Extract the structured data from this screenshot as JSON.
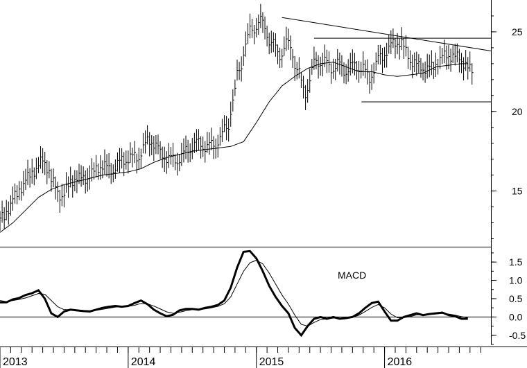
{
  "chart_data": [
    {
      "type": "ohlc",
      "panel": "price",
      "ylim": [
        11.5,
        27
      ],
      "y_ticks": [
        "25",
        "20",
        "15"
      ],
      "y_tick_values": [
        25,
        20,
        15
      ],
      "x_tick_labels": [
        "2013",
        "2014",
        "2015",
        "2016"
      ],
      "x_tick_values": [
        2013.0,
        2014.0,
        2015.0,
        2016.0
      ],
      "xlim": [
        2013.0,
        2016.83
      ],
      "series": [
        {
          "kind": "close",
          "x": [
            2013.0,
            2013.05,
            2013.1,
            2013.15,
            2013.2,
            2013.25,
            2013.3,
            2013.35,
            2013.4,
            2013.45,
            2013.5,
            2013.55,
            2013.6,
            2013.65,
            2013.7,
            2013.75,
            2013.8,
            2013.85,
            2013.9,
            2013.95,
            2014.0,
            2014.05,
            2014.1,
            2014.15,
            2014.2,
            2014.25,
            2014.3,
            2014.35,
            2014.4,
            2014.45,
            2014.5,
            2014.55,
            2014.6,
            2014.65,
            2014.7,
            2014.75,
            2014.8,
            2014.85,
            2014.9,
            2014.95,
            2015.0,
            2015.05,
            2015.1,
            2015.15,
            2015.2,
            2015.25,
            2015.3,
            2015.35,
            2015.4,
            2015.45,
            2015.5,
            2015.55,
            2015.6,
            2015.65,
            2015.7,
            2015.75,
            2015.8,
            2015.85,
            2015.9,
            2015.95,
            2016.0,
            2016.05,
            2016.1,
            2016.15,
            2016.2,
            2016.25,
            2016.3,
            2016.35,
            2016.4,
            2016.45,
            2016.5,
            2016.55,
            2016.6,
            2016.65
          ],
          "y": [
            13.3,
            14.4,
            14.8,
            15.6,
            16.0,
            16.5,
            17.0,
            16.1,
            15.0,
            14.6,
            15.4,
            15.9,
            15.7,
            15.9,
            16.2,
            16.7,
            16.4,
            16.3,
            16.9,
            17.0,
            17.1,
            17.2,
            18.0,
            18.3,
            17.4,
            17.2,
            16.9,
            17.0,
            17.3,
            17.8,
            18.0,
            17.9,
            17.7,
            18.1,
            18.5,
            19.4,
            21.6,
            23.4,
            24.8,
            25.4,
            25.7,
            24.8,
            24.0,
            23.5,
            24.4,
            23.6,
            22.0,
            21.0,
            22.8,
            23.3,
            23.0,
            22.7,
            23.0,
            22.5,
            22.8,
            22.9,
            22.6,
            22.0,
            23.1,
            23.6,
            23.9,
            24.5,
            24.2,
            23.4,
            22.9,
            22.8,
            22.6,
            22.9,
            23.3,
            23.6,
            23.4,
            23.4,
            22.8,
            22.5
          ]
        },
        {
          "kind": "moving-average",
          "x": [
            2013.0,
            2013.1,
            2013.2,
            2013.3,
            2013.4,
            2013.5,
            2013.6,
            2013.7,
            2013.8,
            2013.9,
            2014.0,
            2014.1,
            2014.2,
            2014.3,
            2014.4,
            2014.5,
            2014.6,
            2014.7,
            2014.8,
            2014.9,
            2015.0,
            2015.1,
            2015.2,
            2015.3,
            2015.4,
            2015.5,
            2015.6,
            2015.7,
            2015.8,
            2015.9,
            2016.0,
            2016.1,
            2016.2,
            2016.3,
            2016.4,
            2016.5,
            2016.6,
            2016.65
          ],
          "y": [
            12.4,
            13.0,
            13.8,
            14.6,
            15.1,
            15.4,
            15.6,
            15.8,
            16.0,
            16.1,
            16.2,
            16.4,
            16.8,
            17.1,
            17.3,
            17.5,
            17.6,
            17.7,
            17.8,
            18.1,
            19.3,
            20.6,
            21.6,
            22.2,
            22.7,
            23.0,
            23.1,
            22.8,
            22.5,
            22.5,
            22.3,
            22.2,
            22.3,
            22.4,
            22.8,
            22.9,
            23.0,
            23.0
          ]
        }
      ],
      "lines": [
        {
          "kind": "resistance-trendline",
          "from": [
            2015.2,
            25.9
          ],
          "to": [
            2016.83,
            23.8
          ]
        },
        {
          "kind": "horizontal",
          "from": [
            2015.45,
            24.6
          ],
          "to": [
            2016.83,
            24.6
          ]
        },
        {
          "kind": "horizontal",
          "from": [
            2015.82,
            20.6
          ],
          "to": [
            2016.83,
            20.6
          ]
        }
      ]
    },
    {
      "type": "line",
      "panel": "macd",
      "label": "MACD",
      "ylim": [
        -0.75,
        1.9
      ],
      "y_ticks": [
        "1.5",
        "1.0",
        "0.5",
        "0.0",
        "-0.5"
      ],
      "y_tick_values": [
        1.5,
        1.0,
        0.5,
        0.0,
        -0.5
      ],
      "series": [
        {
          "kind": "macd",
          "x": [
            2013.0,
            2013.05,
            2013.1,
            2013.15,
            2013.2,
            2013.25,
            2013.3,
            2013.35,
            2013.4,
            2013.45,
            2013.5,
            2013.55,
            2013.6,
            2013.65,
            2013.7,
            2013.75,
            2013.8,
            2013.85,
            2013.9,
            2013.95,
            2014.0,
            2014.05,
            2014.1,
            2014.15,
            2014.2,
            2014.25,
            2014.3,
            2014.35,
            2014.4,
            2014.45,
            2014.5,
            2014.55,
            2014.6,
            2014.65,
            2014.7,
            2014.75,
            2014.8,
            2014.85,
            2014.9,
            2014.95,
            2015.0,
            2015.05,
            2015.1,
            2015.15,
            2015.2,
            2015.25,
            2015.3,
            2015.35,
            2015.4,
            2015.45,
            2015.5,
            2015.55,
            2015.6,
            2015.65,
            2015.7,
            2015.75,
            2015.8,
            2015.85,
            2015.9,
            2015.95,
            2016.0,
            2016.05,
            2016.1,
            2016.15,
            2016.2,
            2016.25,
            2016.3,
            2016.35,
            2016.4,
            2016.45,
            2016.5,
            2016.55,
            2016.6,
            2016.65
          ],
          "y": [
            0.4,
            0.4,
            0.48,
            0.52,
            0.6,
            0.65,
            0.73,
            0.5,
            0.1,
            0.0,
            0.15,
            0.2,
            0.18,
            0.16,
            0.15,
            0.2,
            0.25,
            0.28,
            0.3,
            0.28,
            0.3,
            0.38,
            0.45,
            0.35,
            0.2,
            0.1,
            0.02,
            0.06,
            0.18,
            0.22,
            0.22,
            0.2,
            0.25,
            0.28,
            0.33,
            0.45,
            0.8,
            1.35,
            1.78,
            1.8,
            1.6,
            1.25,
            0.85,
            0.55,
            0.3,
            0.1,
            -0.3,
            -0.5,
            -0.25,
            -0.05,
            0.0,
            -0.05,
            0.0,
            -0.05,
            -0.03,
            0.0,
            0.1,
            0.25,
            0.38,
            0.42,
            0.15,
            -0.1,
            -0.1,
            0.0,
            0.05,
            0.1,
            0.05,
            0.08,
            0.1,
            0.12,
            0.05,
            0.02,
            -0.05,
            -0.05
          ]
        },
        {
          "kind": "signal",
          "x": [
            2013.0,
            2013.05,
            2013.1,
            2013.15,
            2013.2,
            2013.25,
            2013.3,
            2013.35,
            2013.4,
            2013.45,
            2013.5,
            2013.55,
            2013.6,
            2013.65,
            2013.7,
            2013.75,
            2013.8,
            2013.85,
            2013.9,
            2013.95,
            2014.0,
            2014.05,
            2014.1,
            2014.15,
            2014.2,
            2014.25,
            2014.3,
            2014.35,
            2014.4,
            2014.45,
            2014.5,
            2014.55,
            2014.6,
            2014.65,
            2014.7,
            2014.75,
            2014.8,
            2014.85,
            2014.9,
            2014.95,
            2015.0,
            2015.05,
            2015.1,
            2015.15,
            2015.2,
            2015.25,
            2015.3,
            2015.35,
            2015.4,
            2015.45,
            2015.5,
            2015.55,
            2015.6,
            2015.65,
            2015.7,
            2015.75,
            2015.8,
            2015.85,
            2015.9,
            2015.95,
            2016.0,
            2016.05,
            2016.1,
            2016.15,
            2016.2,
            2016.25,
            2016.3,
            2016.35,
            2016.4,
            2016.45,
            2016.5,
            2016.55,
            2016.6,
            2016.65
          ],
          "y": [
            0.45,
            0.42,
            0.45,
            0.48,
            0.52,
            0.58,
            0.64,
            0.62,
            0.45,
            0.28,
            0.2,
            0.2,
            0.19,
            0.18,
            0.17,
            0.18,
            0.21,
            0.24,
            0.27,
            0.28,
            0.29,
            0.32,
            0.37,
            0.36,
            0.3,
            0.22,
            0.14,
            0.1,
            0.13,
            0.17,
            0.2,
            0.2,
            0.22,
            0.25,
            0.29,
            0.36,
            0.55,
            0.9,
            1.25,
            1.48,
            1.55,
            1.45,
            1.2,
            0.9,
            0.6,
            0.35,
            0.05,
            -0.2,
            -0.25,
            -0.15,
            -0.07,
            -0.05,
            -0.03,
            -0.03,
            -0.03,
            -0.01,
            0.05,
            0.15,
            0.26,
            0.34,
            0.25,
            0.08,
            -0.02,
            -0.02,
            0.01,
            0.06,
            0.06,
            0.07,
            0.08,
            0.1,
            0.08,
            0.05,
            0.01,
            -0.02
          ]
        }
      ],
      "zero_line": 0
    }
  ]
}
